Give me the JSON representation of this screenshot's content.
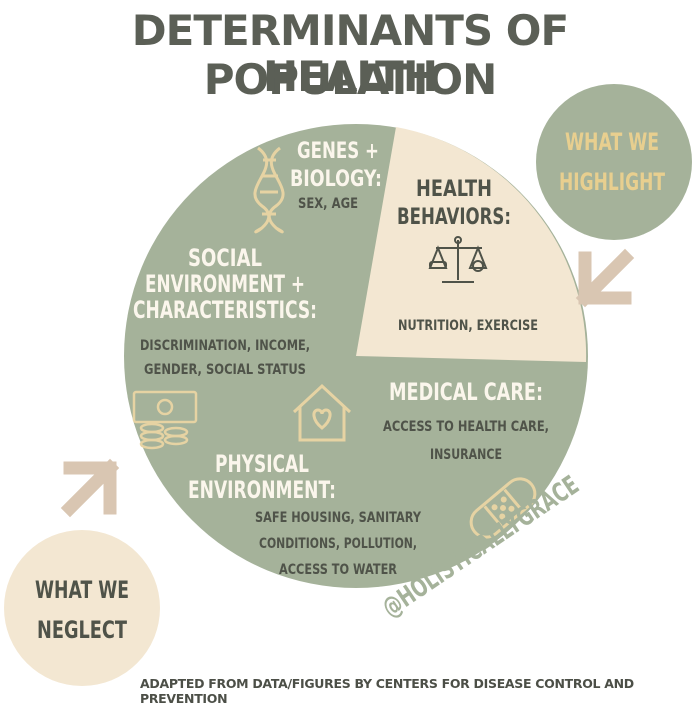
{
  "title": {
    "line1": "DETERMINANTS OF POPULATION",
    "line2": "HEALTH"
  },
  "sections": {
    "genes": {
      "heading1": "GENES +",
      "heading2": "BIOLOGY:",
      "detail": "SEX, AGE"
    },
    "behaviors": {
      "heading1": "HEALTH",
      "heading2": "BEHAVIORS:",
      "detail": "NUTRITION, EXERCISE"
    },
    "social": {
      "heading1": "SOCIAL",
      "heading2": "ENVIRONMENT +",
      "heading3": "CHARACTERISTICS:",
      "detail1": "DISCRIMINATION, INCOME,",
      "detail2": "GENDER, SOCIAL STATUS"
    },
    "medical": {
      "heading": "MEDICAL CARE:",
      "detail1": "ACCESS TO HEALTH CARE,",
      "detail2": "INSURANCE"
    },
    "physical": {
      "heading1": "PHYSICAL",
      "heading2": "ENVIRONMENT:",
      "detail1": "SAFE HOUSING, SANITARY",
      "detail2": "CONDITIONS, POLLUTION,",
      "detail3": "ACCESS TO WATER"
    }
  },
  "callouts": {
    "highlight": {
      "line1": "WHAT WE",
      "line2": "HIGHLIGHT"
    },
    "neglect": {
      "line1": "WHAT WE",
      "line2": "NEGLECT"
    }
  },
  "handle": "@HOLISTICALLYGRACE",
  "footer": "ADAPTED FROM DATA/FIGURES BY CENTERS FOR DISEASE CONTROL AND PREVENTION",
  "colors": {
    "green": "#a5b29a",
    "cream": "#f3e7d2",
    "dark_text": "#4f5349",
    "light_text": "#fbf6ec",
    "gold": "#e8cf8f",
    "icon": "#e6d3a3",
    "arrow": "#d9c6b2"
  },
  "icons": [
    "dna-icon",
    "scale-icon",
    "money-icon",
    "house-heart-icon",
    "bandage-icon",
    "arrow-icon"
  ]
}
